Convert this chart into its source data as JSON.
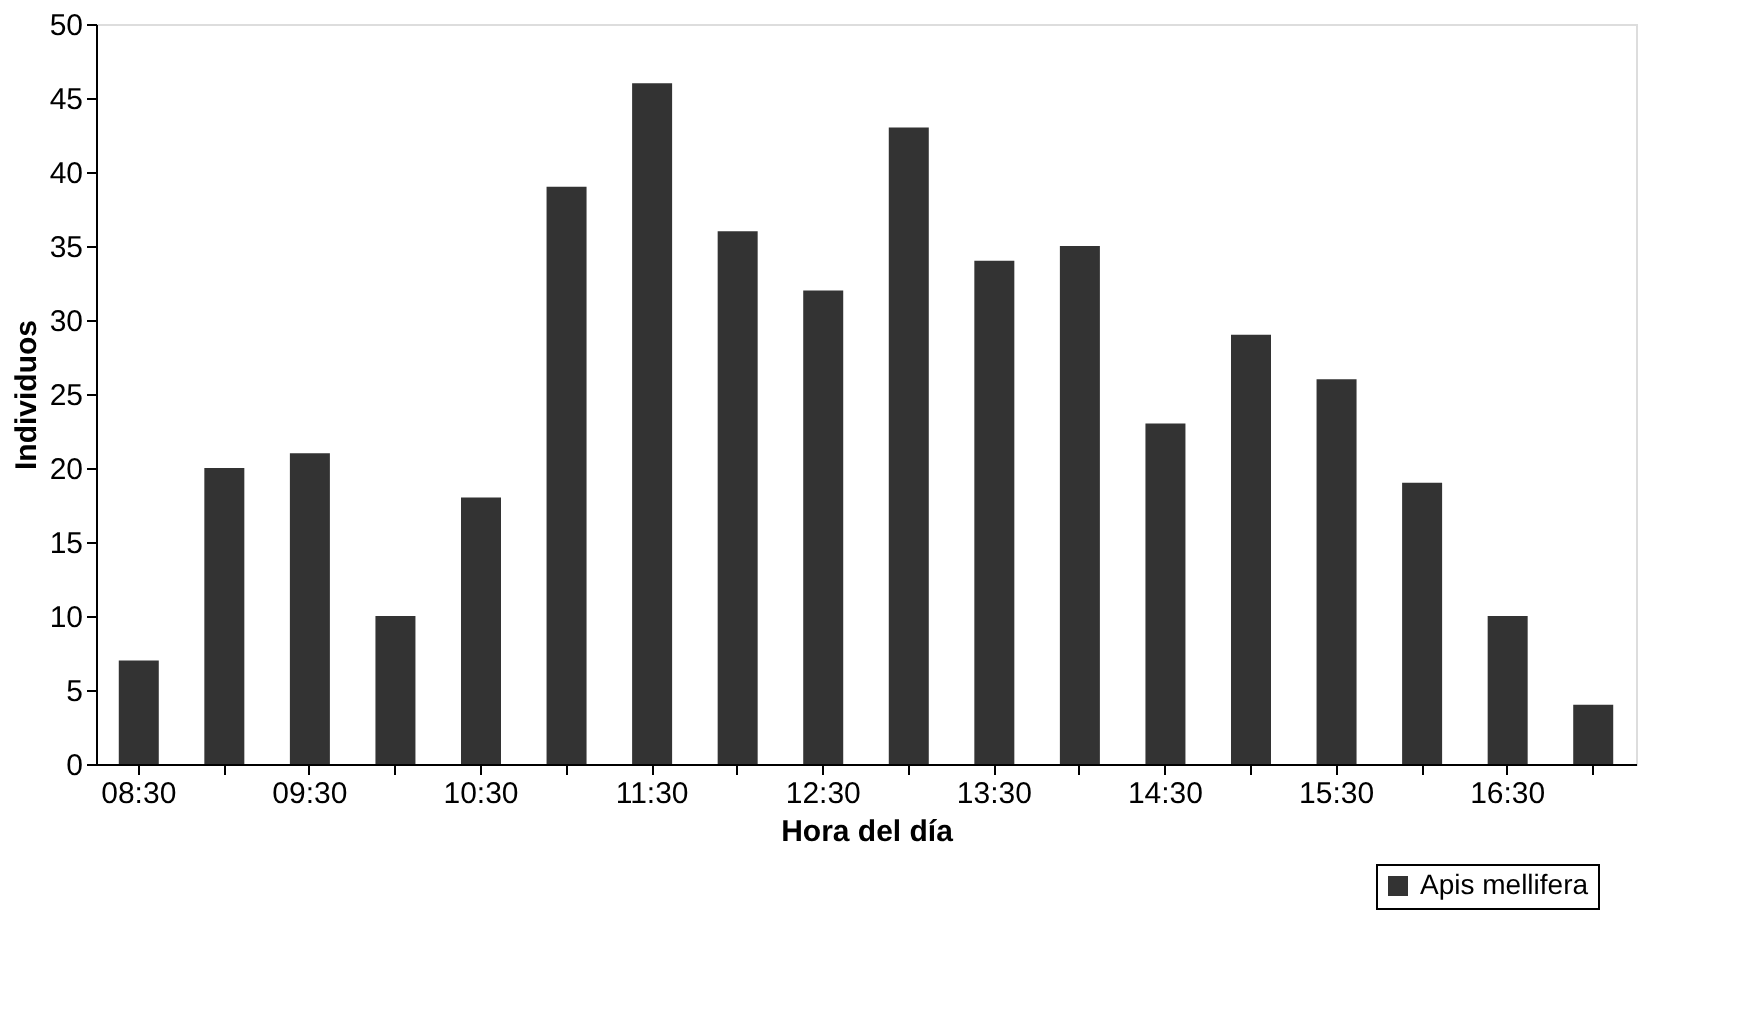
{
  "chart_data": {
    "type": "bar",
    "xlabel": "Hora del día",
    "ylabel": "Individuos",
    "categories": [
      "08:30",
      null,
      "09:30",
      null,
      "10:30",
      null,
      "11:30",
      null,
      "12:30",
      null,
      "13:30",
      null,
      "14:30",
      null,
      "15:30",
      null,
      "16:30",
      null
    ],
    "series": [
      {
        "name": "Apis mellifera",
        "color": "#333333",
        "values": [
          7,
          20,
          21,
          10,
          18,
          39,
          46,
          36,
          32,
          43,
          34,
          35,
          23,
          29,
          26,
          19,
          10,
          4
        ]
      }
    ],
    "ylim": [
      0,
      50
    ],
    "yticks": [
      0,
      5,
      10,
      15,
      20,
      25,
      30,
      35,
      40,
      45,
      50
    ],
    "grid": false,
    "legend": "bottom right"
  }
}
